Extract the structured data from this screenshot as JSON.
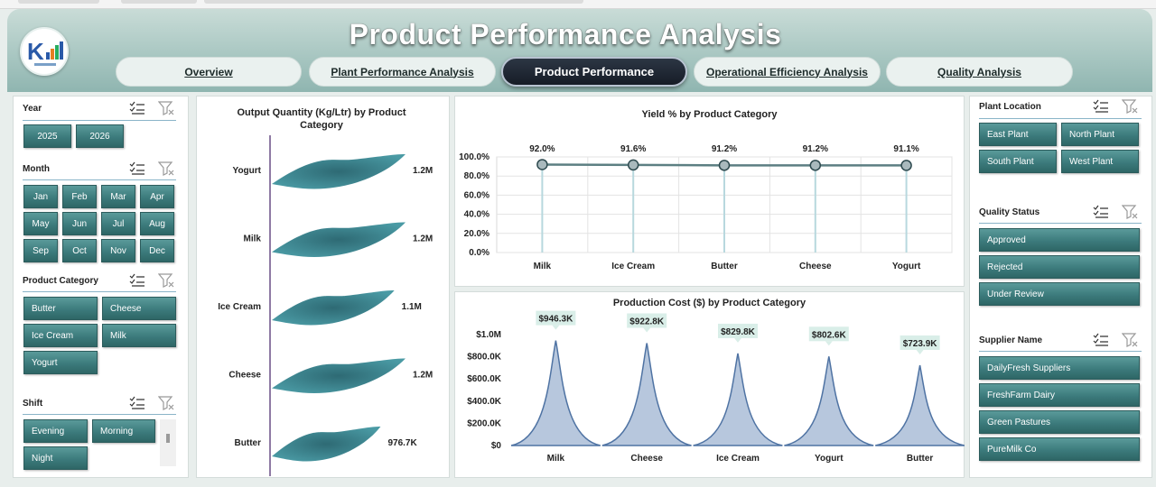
{
  "header": {
    "title": "Product Performance Analysis",
    "tabs": [
      {
        "label": "Overview",
        "active": false
      },
      {
        "label": "Plant Performance Analysis",
        "active": false
      },
      {
        "label": "Product Performance",
        "active": true
      },
      {
        "label": "Operational Efficiency Analysis",
        "active": false
      },
      {
        "label": "Quality Analysis",
        "active": false
      }
    ]
  },
  "slicers_left": {
    "year": {
      "title": "Year",
      "items": [
        "2025",
        "2026"
      ]
    },
    "month": {
      "title": "Month",
      "items": [
        "Jan",
        "Feb",
        "Mar",
        "Apr",
        "May",
        "Jun",
        "Jul",
        "Aug",
        "Sep",
        "Oct",
        "Nov",
        "Dec"
      ]
    },
    "product_category": {
      "title": "Product Category",
      "items": [
        "Butter",
        "Cheese",
        "Ice Cream",
        "Milk",
        "Yogurt"
      ]
    },
    "shift": {
      "title": "Shift",
      "items": [
        "Evening",
        "Morning",
        "Night"
      ]
    }
  },
  "slicers_right": {
    "plant_location": {
      "title": "Plant Location",
      "items": [
        "East Plant",
        "North Plant",
        "South Plant",
        "West Plant"
      ]
    },
    "quality_status": {
      "title": "Quality Status",
      "items": [
        "Approved",
        "Rejected",
        "Under Review"
      ]
    },
    "supplier_name": {
      "title": "Supplier Name",
      "items": [
        "DailyFresh Suppliers",
        "FreshFarm Dairy",
        "Green Pastures",
        "PureMilk Co"
      ]
    }
  },
  "colors": {
    "accent": "#3c7b7c",
    "header_top": "#c9dcd7",
    "wave_fill": "#4a9aa4",
    "cost_fill": "#b7c7dd",
    "cost_stroke": "#4f73a3",
    "label_bg": "#d9eee8"
  },
  "chart_data": [
    {
      "type": "bar",
      "title": "Output Quantity (Kg/Ltr) by Product Category",
      "orientation": "horizontal",
      "categories": [
        "Yogurt",
        "Milk",
        "Ice Cream",
        "Cheese",
        "Butter"
      ],
      "values": [
        1200000,
        1200000,
        1100000,
        1200000,
        976700
      ],
      "data_labels": [
        "1.2M",
        "1.2M",
        "1.1M",
        "1.2M",
        "976.7K"
      ]
    },
    {
      "type": "line",
      "title": "Yield % by Product Category",
      "categories": [
        "Milk",
        "Ice Cream",
        "Butter",
        "Cheese",
        "Yogurt"
      ],
      "values": [
        92.0,
        91.6,
        91.2,
        91.2,
        91.1
      ],
      "data_labels": [
        "92.0%",
        "91.6%",
        "91.2%",
        "91.2%",
        "91.1%"
      ],
      "ylim": [
        0,
        100
      ],
      "y_ticks": [
        "100.0%",
        "80.0%",
        "60.0%",
        "40.0%",
        "20.0%",
        "0.0%"
      ],
      "grid": true
    },
    {
      "type": "area",
      "title": "Production Cost ($) by Product Category",
      "categories": [
        "Milk",
        "Cheese",
        "Ice Cream",
        "Yogurt",
        "Butter"
      ],
      "values": [
        946300,
        922800,
        829800,
        802600,
        723900
      ],
      "data_labels": [
        "$946.3K",
        "$922.8K",
        "$829.8K",
        "$802.6K",
        "$723.9K"
      ],
      "ylim": [
        0,
        1000000
      ],
      "y_ticks": [
        "$1.0M",
        "$800.0K",
        "$600.0K",
        "$400.0K",
        "$200.0K",
        "$0"
      ]
    }
  ]
}
